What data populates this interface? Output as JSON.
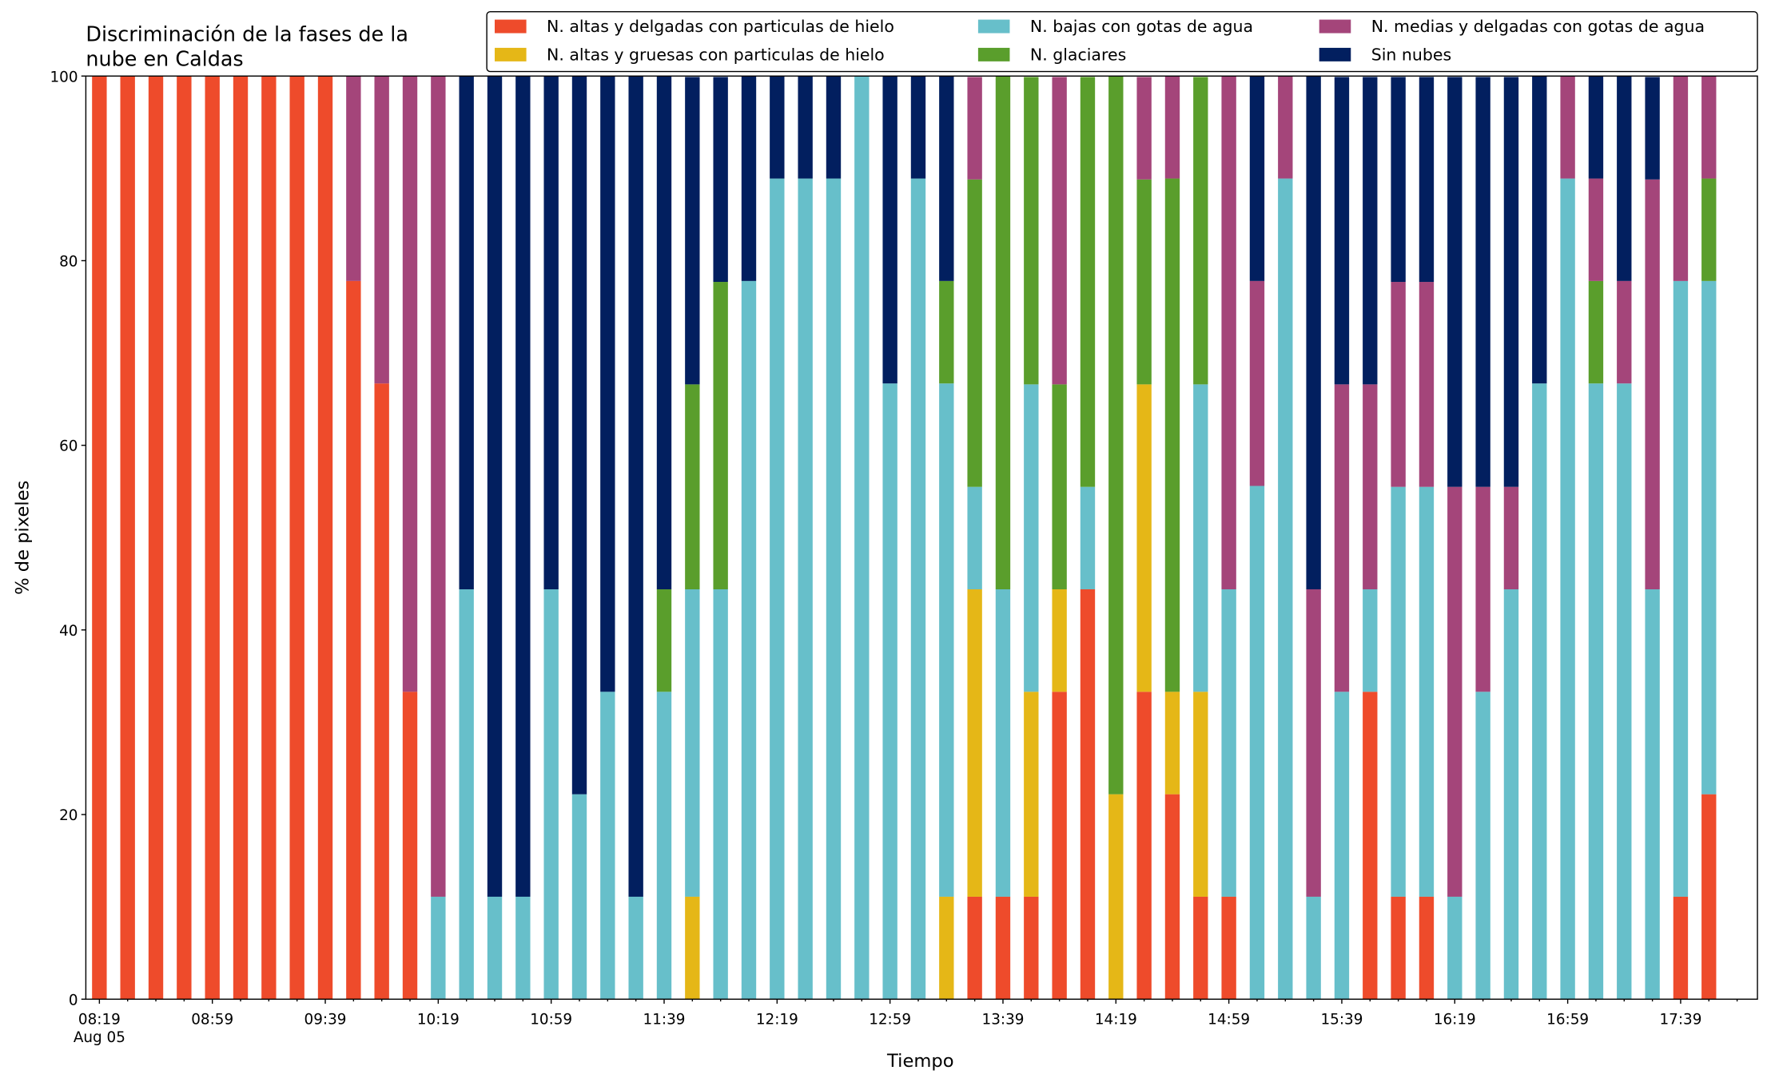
{
  "chart_data": {
    "type": "stacked_bar",
    "title": [
      "Discriminación de la fases de la",
      "nube en Caldas"
    ],
    "x_label": "Tiempo",
    "y_label": "% de pixeles",
    "x_date_label": "Aug 05",
    "categories": [
      "08:19",
      null,
      null,
      null,
      "08:59",
      null,
      null,
      null,
      "09:39",
      null,
      null,
      null,
      "10:19",
      null,
      null,
      null,
      "10:59",
      null,
      null,
      null,
      "11:39",
      null,
      null,
      null,
      "12:19",
      null,
      null,
      null,
      "12:59",
      null,
      null,
      null,
      "13:39",
      null,
      null,
      null,
      "14:19",
      null,
      null,
      null,
      "14:59",
      null,
      null,
      null,
      "15:39",
      null,
      null,
      null,
      "16:19",
      null,
      null,
      null,
      "16:59",
      null,
      null,
      null,
      "17:39",
      null
    ],
    "ylim": [
      0,
      100
    ],
    "yticks": [
      0,
      20,
      40,
      60,
      80,
      100
    ],
    "legend_position": "top-right",
    "series": [
      {
        "name": "N. altas y delgadas con particulas de hielo",
        "color": "#ee4b2b",
        "values": [
          100,
          100,
          100,
          100,
          100,
          100,
          100,
          100,
          100,
          77.8,
          66.7,
          33.3,
          0,
          0,
          0,
          0,
          0,
          0,
          0,
          0,
          0,
          0,
          0,
          0,
          0,
          0,
          0,
          0,
          0,
          0,
          0,
          11.1,
          11.1,
          11.1,
          33.3,
          44.4,
          0,
          33.3,
          22.2,
          11.1,
          11.1,
          0,
          0,
          0,
          0,
          33.3,
          11.1,
          11.1,
          0,
          0,
          0,
          0,
          0,
          0,
          0,
          0,
          11.1,
          22.2
        ]
      },
      {
        "name": "N. altas y gruesas con particulas de hielo",
        "color": "#e5b717",
        "values": [
          0,
          0,
          0,
          0,
          0,
          0,
          0,
          0,
          0,
          0,
          0,
          0,
          0,
          0,
          0,
          0,
          0,
          0,
          0,
          0,
          0,
          11.1,
          0,
          0,
          0,
          0,
          0,
          0,
          0,
          0,
          11.1,
          33.3,
          0,
          22.2,
          11.1,
          0,
          22.2,
          33.3,
          11.1,
          22.2,
          0,
          0,
          0,
          0,
          0,
          0,
          0,
          0,
          0,
          0,
          0,
          0,
          0,
          0,
          0,
          0,
          0,
          0
        ]
      },
      {
        "name": "N. bajas con gotas de agua",
        "color": "#67bfca",
        "values": [
          0,
          0,
          0,
          0,
          0,
          0,
          0,
          0,
          0,
          0,
          0,
          0,
          11.1,
          44.4,
          11.1,
          11.1,
          44.4,
          22.2,
          33.3,
          11.1,
          33.3,
          33.3,
          44.4,
          77.8,
          88.9,
          88.9,
          88.9,
          100,
          66.7,
          88.9,
          55.6,
          11.1,
          33.3,
          33.3,
          0,
          11.1,
          0,
          0,
          0,
          33.3,
          33.3,
          55.6,
          88.9,
          11.1,
          33.3,
          11.1,
          44.4,
          44.4,
          11.1,
          33.3,
          44.4,
          66.7,
          88.9,
          66.7,
          66.7,
          44.4,
          66.7,
          55.6
        ]
      },
      {
        "name": "N. glaciares",
        "color": "#5a9e2c",
        "values": [
          0,
          0,
          0,
          0,
          0,
          0,
          0,
          0,
          0,
          0,
          0,
          0,
          0,
          0,
          0,
          0,
          0,
          0,
          0,
          0,
          11.1,
          22.2,
          33.3,
          0,
          0,
          0,
          0,
          0,
          0,
          0,
          11.1,
          33.3,
          55.6,
          33.3,
          22.2,
          44.4,
          77.8,
          22.2,
          55.6,
          33.3,
          0,
          0,
          0,
          0,
          0,
          0,
          0,
          0,
          0,
          0,
          0,
          0,
          0,
          11.1,
          0,
          0,
          0,
          11.1
        ]
      },
      {
        "name": "N. medias y delgadas con gotas de agua",
        "color": "#a4457a",
        "values": [
          0,
          0,
          0,
          0,
          0,
          0,
          0,
          0,
          0,
          22.2,
          33.3,
          66.7,
          88.9,
          0,
          0,
          0,
          0,
          0,
          0,
          0,
          0,
          0,
          0,
          0,
          0,
          0,
          0,
          0,
          0,
          0,
          0,
          11.1,
          0,
          0,
          33.3,
          0,
          0,
          11.1,
          11.1,
          0,
          55.6,
          22.2,
          11.1,
          33.3,
          33.3,
          22.2,
          22.2,
          22.2,
          44.4,
          22.2,
          11.1,
          0,
          11.1,
          11.1,
          11.1,
          44.4,
          22.2,
          11.1
        ]
      },
      {
        "name": "Sin nubes",
        "color": "#021f5f",
        "values": [
          0,
          0,
          0,
          0,
          0,
          0,
          0,
          0,
          0,
          0,
          0,
          0,
          0,
          55.6,
          88.9,
          88.9,
          55.6,
          77.8,
          66.7,
          88.9,
          55.6,
          33.3,
          22.2,
          22.2,
          11.1,
          11.1,
          11.1,
          0,
          33.3,
          11.1,
          22.2,
          0,
          0,
          0,
          0,
          0,
          0,
          0,
          0,
          0,
          0,
          22.2,
          0,
          55.6,
          33.3,
          33.3,
          22.2,
          22.2,
          44.4,
          44.4,
          44.4,
          33.3,
          0,
          11.1,
          22.2,
          11.1,
          0,
          0
        ]
      }
    ]
  }
}
